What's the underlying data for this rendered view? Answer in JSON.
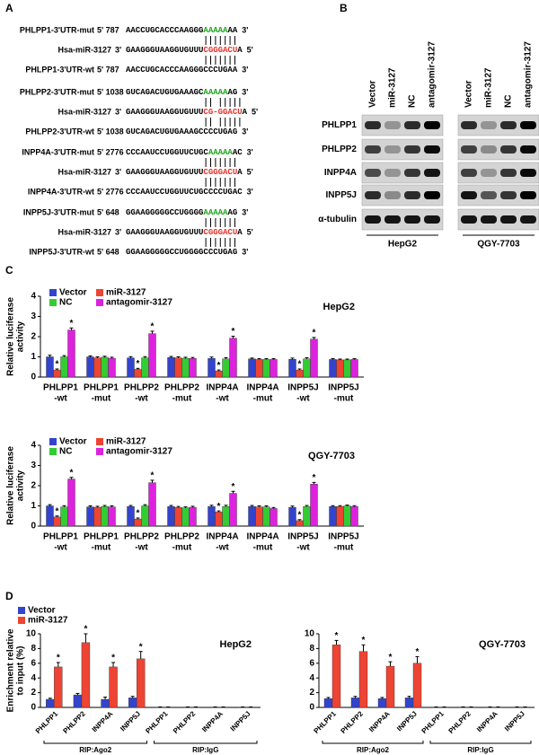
{
  "panels": {
    "a": "A",
    "b": "B",
    "c": "C",
    "d": "D"
  },
  "alignments": [
    {
      "rows": [
        {
          "label": "PHLPP1-3'UTR-mut",
          "position": "5' 787",
          "segments": [
            {
              "text": "AACCUGCACCCAAGGG",
              "color": "#000000"
            },
            {
              "text": "AAAAA",
              "color": "#1aa31a"
            },
            {
              "text": "AA",
              "color": "#000000"
            }
          ],
          "end": "3'"
        },
        {
          "label": "Hsa-miR-3127",
          "position": "3'",
          "segments": [
            {
              "text": "GAAGGGUAAGGUGUUU",
              "color": "#000000"
            },
            {
              "text": "CGGGACU",
              "color": "#e8302a"
            },
            {
              "text": "A",
              "color": "#000000"
            }
          ],
          "end": "5'"
        },
        {
          "label": "PHLPP1-3'UTR-wt",
          "position": "5' 787",
          "segments": [
            {
              "text": "AACCUGCACCCAAGGGCCCUGAA",
              "color": "#000000"
            }
          ],
          "end": "3'"
        }
      ]
    },
    {
      "rows": [
        {
          "label": "PHLPP2-3'UTR-mut",
          "position": "5' 1038",
          "segments": [
            {
              "text": "GUCAGACUGUGAAAGC",
              "color": "#000000"
            },
            {
              "text": "AAAAA",
              "color": "#1aa31a"
            },
            {
              "text": "AG",
              "color": "#000000"
            }
          ],
          "end": "3'"
        },
        {
          "label": "Hsa-miR-3127",
          "position": "3'",
          "segments": [
            {
              "text": "GAAGGGUAAGGUGUUU",
              "color": "#000000"
            },
            {
              "text": "CG-GGACU",
              "color": "#e8302a"
            },
            {
              "text": "A",
              "color": "#000000"
            }
          ],
          "end": "5'"
        },
        {
          "label": "PHLPP2-3'UTR-wt",
          "position": "5' 1038",
          "segments": [
            {
              "text": "GUCAGACUGUGAAAGCCCCUGAG",
              "color": "#000000"
            }
          ],
          "end": "3'"
        }
      ]
    },
    {
      "rows": [
        {
          "label": "INPP4A-3'UTR-mut",
          "position": "5' 2776",
          "segments": [
            {
              "text": "CCCAAUCCUGGUUCUGC",
              "color": "#000000"
            },
            {
              "text": "AAAAA",
              "color": "#1aa31a"
            },
            {
              "text": "AC",
              "color": "#000000"
            }
          ],
          "end": "3'"
        },
        {
          "label": "Hsa-miR-3127",
          "position": "3'",
          "segments": [
            {
              "text": "GAAGGGUAAGGUGUUU",
              "color": "#000000"
            },
            {
              "text": "CGGGACU",
              "color": "#e8302a"
            },
            {
              "text": "A",
              "color": "#000000"
            }
          ],
          "end": "5'"
        },
        {
          "label": "INPP4A-3'UTR-wt",
          "position": "5' 2776",
          "segments": [
            {
              "text": "CCCAAUCCUGGUUCUGCCCCUGAC",
              "color": "#000000"
            }
          ],
          "end": "3'"
        }
      ]
    },
    {
      "rows": [
        {
          "label": "INPP5J-3'UTR-mut",
          "position": "5' 648",
          "segments": [
            {
              "text": "GGAAGGGGGCCUGGGG",
              "color": "#000000"
            },
            {
              "text": "AAAAA",
              "color": "#1aa31a"
            },
            {
              "text": "AG",
              "color": "#000000"
            }
          ],
          "end": "3'"
        },
        {
          "label": "Hsa-miR-3127",
          "position": "3'",
          "segments": [
            {
              "text": "GAAGGGUAAGGUGUUU",
              "color": "#000000"
            },
            {
              "text": "CGGGACU",
              "color": "#e8302a"
            },
            {
              "text": "A",
              "color": "#000000"
            }
          ],
          "end": "5'"
        },
        {
          "label": "INPP5J-3'UTR-wt",
          "position": "5' 648",
          "segments": [
            {
              "text": "GGAAGGGGGCCUGGGGCCCUGAG",
              "color": "#000000"
            }
          ],
          "end": "3'"
        }
      ]
    }
  ],
  "blot": {
    "lanes": [
      "Vector",
      "miR-3127",
      "NC",
      "antagomir-3127"
    ],
    "proteins": [
      "PHLPP1",
      "PHLPP2",
      "INPP4A",
      "INPP5J",
      "α-tubulin"
    ],
    "cell_lines": [
      "HepG2",
      "QGY-7703"
    ]
  },
  "chart_data": [
    {
      "type": "bar",
      "title": "HepG2",
      "ylabel": [
        "Relative luciferase",
        "activity"
      ],
      "categories": [
        [
          "PHLPP1",
          "-wt"
        ],
        [
          "PHLPP1",
          "-mut"
        ],
        [
          "PHLPP2",
          "-wt"
        ],
        [
          "PHLPP2",
          "-mut"
        ],
        [
          "INPP4A",
          "-wt"
        ],
        [
          "INPP4A",
          "-mut"
        ],
        [
          "INPP5J",
          "-wt"
        ],
        [
          "INPP5J",
          "-mut"
        ]
      ],
      "ylim": [
        0,
        4
      ],
      "yticks": [
        0,
        1,
        2,
        3,
        4
      ],
      "legend": true,
      "series": [
        {
          "name": "Vector",
          "color": "#3344cc",
          "values": [
            1.0,
            1.0,
            0.95,
            0.97,
            0.92,
            0.9,
            0.88,
            0.87
          ],
          "errors": [
            0.08,
            0.05,
            0.06,
            0.05,
            0.07,
            0.04,
            0.06,
            0.04
          ]
        },
        {
          "name": "miR-3127",
          "color": "#ee4433",
          "values": [
            0.35,
            0.95,
            0.38,
            0.95,
            0.3,
            0.87,
            0.35,
            0.85
          ],
          "errors": [
            0.05,
            0.05,
            0.05,
            0.05,
            0.05,
            0.04,
            0.05,
            0.04
          ],
          "markers": [
            "*",
            null,
            "*",
            null,
            "*",
            null,
            "*",
            null
          ]
        },
        {
          "name": "NC",
          "color": "#33cc33",
          "values": [
            1.0,
            0.98,
            0.95,
            0.93,
            0.9,
            0.87,
            0.9,
            0.85
          ],
          "errors": [
            0.06,
            0.05,
            0.06,
            0.05,
            0.06,
            0.04,
            0.06,
            0.04
          ]
        },
        {
          "name": "antagomir-3127",
          "color": "#dd22dd",
          "values": [
            2.33,
            0.93,
            2.15,
            0.92,
            1.92,
            0.87,
            1.88,
            0.87
          ],
          "errors": [
            0.1,
            0.05,
            0.12,
            0.05,
            0.1,
            0.04,
            0.08,
            0.04
          ],
          "markers": [
            "*",
            null,
            "*",
            null,
            "*",
            null,
            "*",
            null
          ]
        }
      ]
    },
    {
      "type": "bar",
      "title": "QGY-7703",
      "ylabel": [
        "Relative luciferase",
        "activity"
      ],
      "categories": [
        [
          "PHLPP1",
          "-wt"
        ],
        [
          "PHLPP1",
          "-mut"
        ],
        [
          "PHLPP2",
          "-wt"
        ],
        [
          "PHLPP2",
          "-mut"
        ],
        [
          "INPP4A",
          "-wt"
        ],
        [
          "INPP4A",
          "-mut"
        ],
        [
          "INPP5J",
          "-wt"
        ],
        [
          "INPP5J",
          "-mut"
        ]
      ],
      "ylim": [
        0,
        4
      ],
      "yticks": [
        0,
        1,
        2,
        3,
        4
      ],
      "legend": true,
      "series": [
        {
          "name": "Vector",
          "color": "#3344cc",
          "values": [
            1.0,
            0.95,
            0.97,
            0.97,
            0.97,
            0.97,
            0.93,
            0.97
          ],
          "errors": [
            0.06,
            0.05,
            0.05,
            0.05,
            0.06,
            0.05,
            0.06,
            0.04
          ]
        },
        {
          "name": "miR-3127",
          "color": "#ee4433",
          "values": [
            0.45,
            0.93,
            0.35,
            0.92,
            0.7,
            0.95,
            0.27,
            0.97
          ],
          "errors": [
            0.05,
            0.05,
            0.05,
            0.05,
            0.05,
            0.05,
            0.05,
            0.04
          ],
          "markers": [
            "*",
            null,
            "*",
            null,
            "*",
            null,
            "*",
            null
          ]
        },
        {
          "name": "NC",
          "color": "#33cc33",
          "values": [
            0.95,
            0.97,
            1.0,
            0.9,
            0.97,
            0.95,
            0.97,
            1.0
          ],
          "errors": [
            0.06,
            0.05,
            0.06,
            0.05,
            0.06,
            0.05,
            0.05,
            0.04
          ]
        },
        {
          "name": "antagomir-3127",
          "color": "#dd22dd",
          "values": [
            2.33,
            0.95,
            2.15,
            0.93,
            1.62,
            0.87,
            2.08,
            0.97
          ],
          "errors": [
            0.08,
            0.05,
            0.12,
            0.05,
            0.1,
            0.05,
            0.08,
            0.04
          ],
          "markers": [
            "*",
            null,
            "*",
            null,
            "*",
            null,
            "*",
            null
          ]
        }
      ]
    },
    {
      "type": "bar",
      "title": "HepG2",
      "ylabel": [
        "Enrichment relative",
        "to input (%)"
      ],
      "categories": [
        "PHLPP1",
        "PHLPP2",
        "INPP4A",
        "INPP5J",
        "PHLPP1",
        "PHLPP2",
        "INPP4A",
        "INPP5J"
      ],
      "category_groups": [
        "RIP:Ago2",
        "RIP:IgG"
      ],
      "xtick_rotation": -45,
      "ylim": [
        0,
        10
      ],
      "yticks": [
        0,
        2,
        4,
        6,
        8,
        10
      ],
      "legend": true,
      "series": [
        {
          "name": "Vector",
          "color": "#3344cc",
          "values": [
            1.1,
            1.7,
            1.1,
            1.3,
            0.05,
            0.05,
            0.05,
            0.05
          ],
          "errors": [
            0.15,
            0.2,
            0.3,
            0.2,
            0.02,
            0.02,
            0.02,
            0.02
          ]
        },
        {
          "name": "miR-3127",
          "color": "#ee4433",
          "values": [
            5.5,
            8.8,
            5.5,
            6.6,
            0.05,
            0.05,
            0.05,
            0.05
          ],
          "errors": [
            0.6,
            1.2,
            0.6,
            1.0,
            0.02,
            0.02,
            0.02,
            0.02
          ],
          "markers": [
            "*",
            "*",
            "*",
            "*",
            null,
            null,
            null,
            null
          ]
        }
      ]
    },
    {
      "type": "bar",
      "title": "QGY-7703",
      "categories": [
        "PHLPP1",
        "PHLPP2",
        "INPP4A",
        "INPP5J",
        "PHLPP1",
        "PHLPP2",
        "INPP4A",
        "INPP5J"
      ],
      "category_groups": [
        "RIP:Ago2",
        "RIP:IgG"
      ],
      "xtick_rotation": -45,
      "ylim": [
        0,
        10
      ],
      "yticks": [
        0,
        2,
        4,
        6,
        8,
        10
      ],
      "legend": false,
      "series": [
        {
          "name": "Vector",
          "color": "#3344cc",
          "values": [
            1.2,
            1.3,
            1.2,
            1.3,
            0.05,
            0.05,
            0.05,
            0.05
          ],
          "errors": [
            0.15,
            0.2,
            0.15,
            0.2,
            0.02,
            0.02,
            0.02,
            0.02
          ]
        },
        {
          "name": "miR-3127",
          "color": "#ee4433",
          "values": [
            8.5,
            7.6,
            5.6,
            6.0,
            0.05,
            0.05,
            0.05,
            0.05
          ],
          "errors": [
            0.6,
            0.9,
            0.6,
            0.9,
            0.02,
            0.02,
            0.02,
            0.02
          ],
          "markers": [
            "*",
            "*",
            "*",
            "*",
            null,
            null,
            null,
            null
          ]
        }
      ]
    }
  ]
}
